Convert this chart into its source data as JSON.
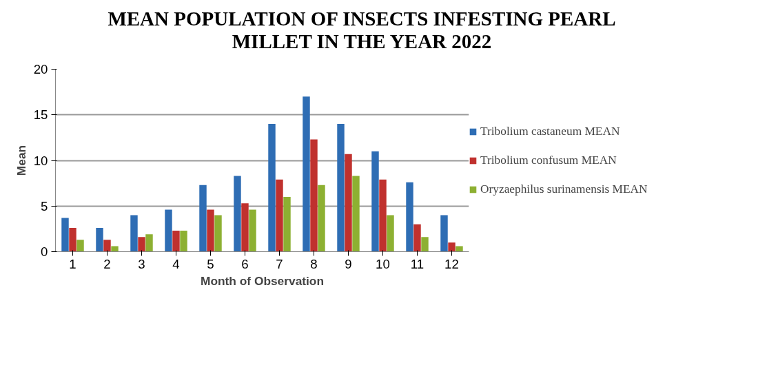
{
  "chart_data": {
    "type": "bar",
    "title": "MEAN POPULATION OF INSECTS INFESTING PEARL MILLET IN THE YEAR 2022",
    "xlabel": "Month of Observation",
    "ylabel": "Mean",
    "x": [
      1,
      2,
      3,
      4,
      5,
      6,
      7,
      8,
      9,
      10,
      11,
      12
    ],
    "xlim": [
      0.5,
      12.5
    ],
    "xticks": [
      1,
      2,
      3,
      4,
      5,
      6,
      7,
      8,
      9,
      10,
      11,
      12
    ],
    "series": [
      {
        "name": "Tribolium castaneum MEAN",
        "color": "#2e6db4",
        "values": [
          3.7,
          2.6,
          4.0,
          4.6,
          7.3,
          8.3,
          14.0,
          17.0,
          14.0,
          11.0,
          7.6,
          4.0
        ]
      },
      {
        "name": "Tribolium confusum MEAN",
        "color": "#c0312e",
        "values": [
          2.6,
          1.3,
          1.6,
          2.3,
          4.6,
          5.3,
          7.9,
          12.3,
          10.7,
          7.9,
          3.0,
          1.0
        ]
      },
      {
        "name": "Oryzaephilus surinamensis MEAN",
        "color": "#8db032",
        "values": [
          1.3,
          0.6,
          1.9,
          2.3,
          4.0,
          4.6,
          6.0,
          7.3,
          8.3,
          4.0,
          1.6,
          0.6
        ]
      }
    ],
    "ylim": [
      0,
      20
    ],
    "yticks": [
      0,
      5,
      10,
      15,
      20
    ],
    "grid": "y",
    "legend": "right"
  }
}
